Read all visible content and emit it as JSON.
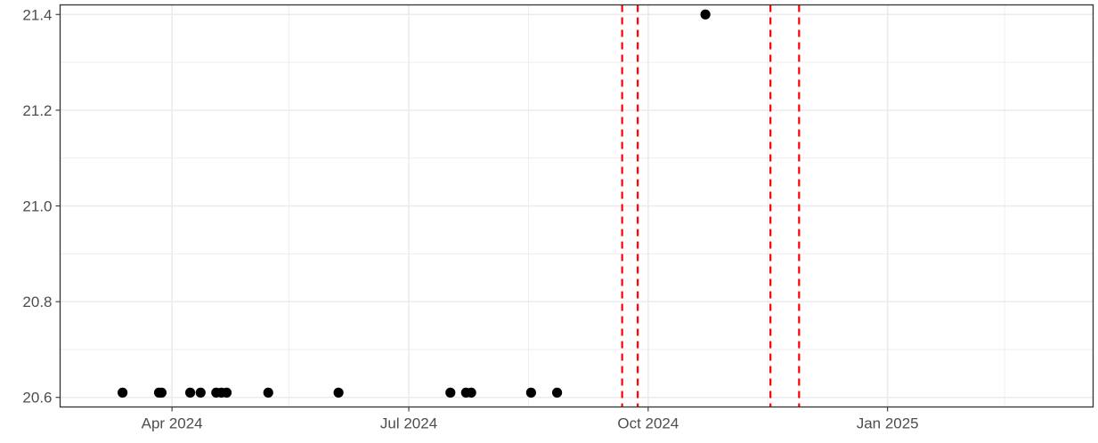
{
  "chart_data": {
    "type": "scatter",
    "title": "",
    "xlabel": "",
    "ylabel": "",
    "x_axis": {
      "scale": "date",
      "range": [
        "2024-02-18",
        "2025-03-21"
      ],
      "ticks": [
        {
          "date": "2024-04-01",
          "label": "Apr 2024"
        },
        {
          "date": "2024-07-01",
          "label": "Jul 2024"
        },
        {
          "date": "2024-10-01",
          "label": "Oct 2024"
        },
        {
          "date": "2025-01-01",
          "label": "Jan 2025"
        }
      ],
      "minor_ticks": [
        "2024-02-15",
        "2024-05-16",
        "2024-08-16",
        "2024-11-16",
        "2025-02-15"
      ]
    },
    "y_axis": {
      "range": [
        20.58,
        21.42
      ],
      "ticks": [
        20.6,
        20.8,
        21.0,
        21.2,
        21.4
      ],
      "tick_labels": [
        "20.6",
        "20.8",
        "21.0",
        "21.2",
        "21.4"
      ],
      "minor_ticks": [
        20.7,
        20.9,
        21.1,
        21.3
      ]
    },
    "grid": true,
    "series": [
      {
        "points": [
          {
            "x": "2024-03-13",
            "y": 20.61
          },
          {
            "x": "2024-03-27",
            "y": 20.61
          },
          {
            "x": "2024-03-28",
            "y": 20.61
          },
          {
            "x": "2024-04-08",
            "y": 20.61
          },
          {
            "x": "2024-04-12",
            "y": 20.61
          },
          {
            "x": "2024-04-18",
            "y": 20.61
          },
          {
            "x": "2024-04-20",
            "y": 20.61
          },
          {
            "x": "2024-04-22",
            "y": 20.61
          },
          {
            "x": "2024-05-08",
            "y": 20.61
          },
          {
            "x": "2024-06-04",
            "y": 20.61
          },
          {
            "x": "2024-07-17",
            "y": 20.61
          },
          {
            "x": "2024-07-23",
            "y": 20.61
          },
          {
            "x": "2024-07-25",
            "y": 20.61
          },
          {
            "x": "2024-08-17",
            "y": 20.61
          },
          {
            "x": "2024-08-27",
            "y": 20.61
          },
          {
            "x": "2024-10-23",
            "y": 21.4
          }
        ],
        "color": "#000000"
      }
    ],
    "vlines": {
      "dates": [
        "2024-09-21",
        "2024-09-27",
        "2024-11-17",
        "2024-11-28"
      ],
      "color": "#ff0000",
      "style": "dashed"
    }
  }
}
